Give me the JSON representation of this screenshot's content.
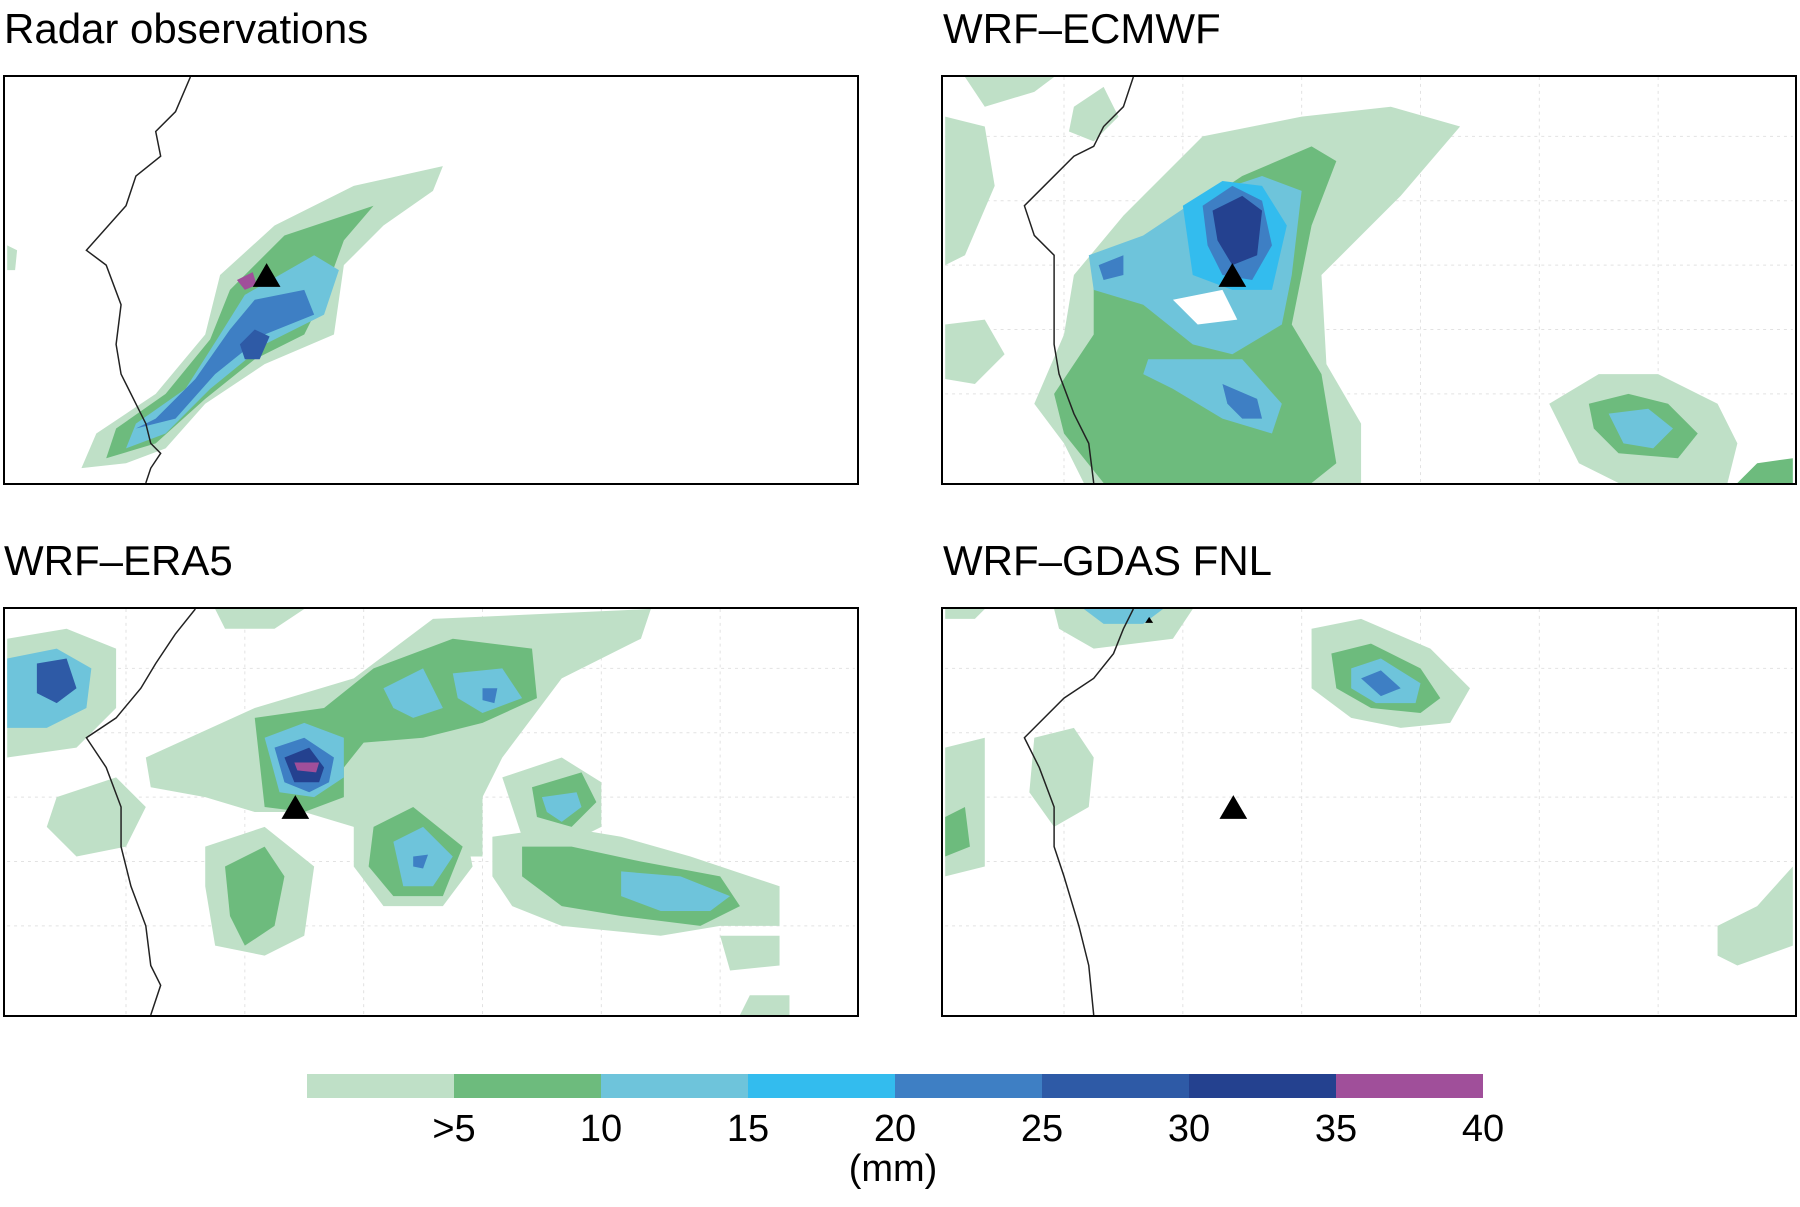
{
  "panels": [
    {
      "title": "Radar observations"
    },
    {
      "title": "WRF–ECMWF"
    },
    {
      "title": "WRF–ERA5"
    },
    {
      "title": "WRF–GDAS FNL"
    }
  ],
  "colorbar": {
    "colors": [
      "#bfe0c7",
      "#6dbb7d",
      "#6ec4db",
      "#33bcee",
      "#3e7fc4",
      "#2e5aa6",
      "#24418f",
      "#a04f9a"
    ],
    "ticks": [
      ">5",
      "10",
      "15",
      "20",
      "25",
      "30",
      "35",
      "40"
    ],
    "units": "(mm)"
  },
  "marker": "triangle-marker"
}
